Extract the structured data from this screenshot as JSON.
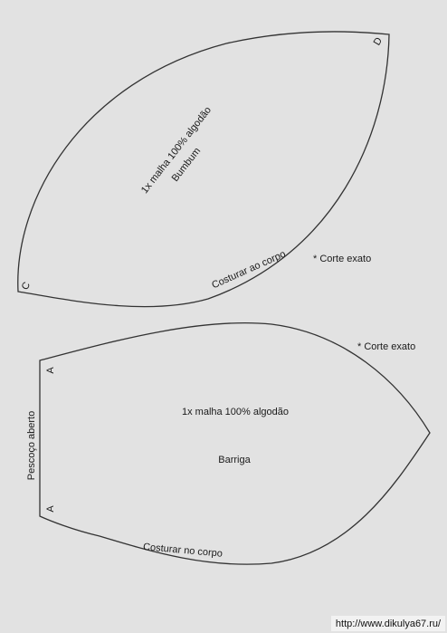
{
  "top_piece": {
    "fabric": "1x malha 100% algodão",
    "name": "Bumbum",
    "corner_left": "C",
    "corner_right": "D",
    "edge": "Costurar ao corpo",
    "note": "* Corte exato"
  },
  "bottom_piece": {
    "fabric": "1x malha 100% algodão",
    "name": "Barriga",
    "corner_top": "A",
    "corner_bottom": "A",
    "side": "Pescoço aberto",
    "edge": "Costurar no corpo",
    "note": "* Corte exato"
  },
  "watermark": "http://www.dikulya67.ru/"
}
